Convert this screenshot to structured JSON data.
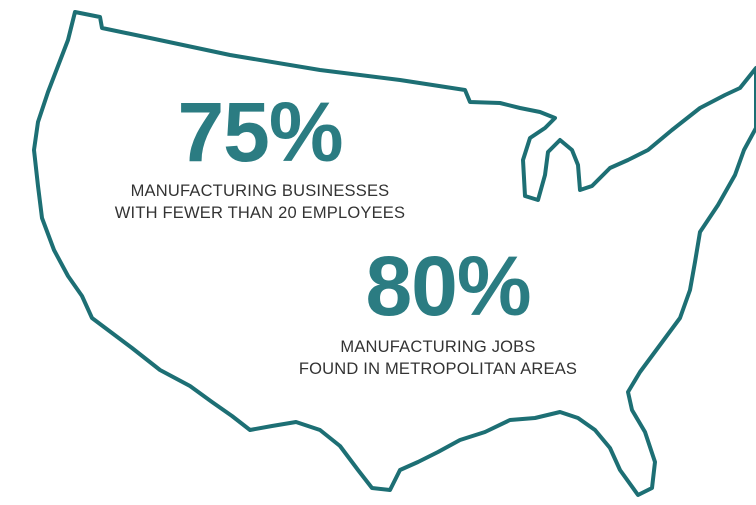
{
  "stats": [
    {
      "value": "75%",
      "label_lines": [
        "MANUFACTURING BUSINESSES",
        "WITH FEWER THAN 20 EMPLOYEES"
      ]
    },
    {
      "value": "80%",
      "label_lines": [
        "MANUFACTURING JOBS",
        "FOUND IN METROPOLITAN AREAS"
      ]
    }
  ]
}
